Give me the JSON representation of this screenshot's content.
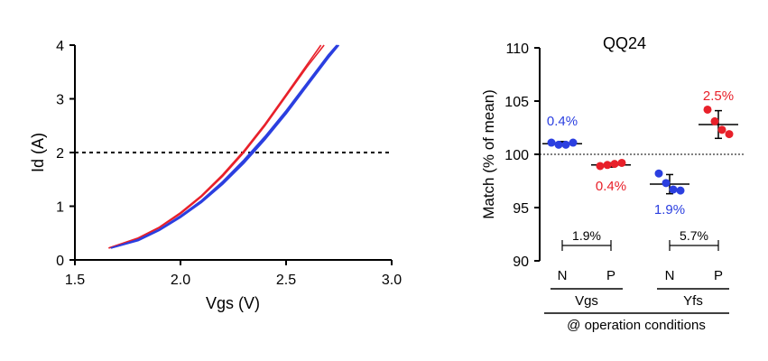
{
  "chart_data": [
    {
      "type": "line",
      "xlabel": "Vgs (V)",
      "ylabel": "Id (A)",
      "xlim": [
        1.5,
        3.0
      ],
      "ylim": [
        0,
        4
      ],
      "xticks": [
        "1.5",
        "2.0",
        "2.5",
        "3.0"
      ],
      "yticks": [
        "0",
        "1",
        "2",
        "3",
        "4"
      ],
      "reference_line": {
        "y": 2,
        "style": "dotted"
      },
      "series": [
        {
          "color": "#e8202a",
          "x": [
            1.66,
            1.8,
            1.9,
            2.0,
            2.1,
            2.2,
            2.3,
            2.4,
            2.5,
            2.6,
            2.68
          ],
          "y": [
            0.22,
            0.4,
            0.6,
            0.86,
            1.18,
            1.56,
            2.0,
            2.5,
            3.05,
            3.6,
            4.0
          ]
        },
        {
          "color": "#e8202a",
          "x": [
            1.66,
            1.8,
            1.9,
            2.0,
            2.1,
            2.2,
            2.3,
            2.4,
            2.5,
            2.6,
            2.665
          ],
          "y": [
            0.22,
            0.41,
            0.61,
            0.88,
            1.2,
            1.59,
            2.03,
            2.53,
            3.08,
            3.64,
            4.0
          ]
        },
        {
          "color": "#2b3fe0",
          "x": [
            1.67,
            1.8,
            1.9,
            2.0,
            2.1,
            2.2,
            2.3,
            2.4,
            2.5,
            2.6,
            2.7,
            2.74
          ],
          "y": [
            0.22,
            0.38,
            0.57,
            0.82,
            1.11,
            1.46,
            1.86,
            2.3,
            2.78,
            3.3,
            3.82,
            4.0
          ]
        },
        {
          "color": "#2b3fe0",
          "x": [
            1.67,
            1.8,
            1.9,
            2.0,
            2.1,
            2.2,
            2.3,
            2.4,
            2.5,
            2.6,
            2.7,
            2.745
          ],
          "y": [
            0.22,
            0.37,
            0.56,
            0.8,
            1.09,
            1.43,
            1.83,
            2.27,
            2.75,
            3.27,
            3.79,
            4.0
          ]
        },
        {
          "color": "#2b3fe0",
          "x": [
            1.67,
            1.8,
            1.9,
            2.0,
            2.1,
            2.2,
            2.3,
            2.4,
            2.5,
            2.6,
            2.7,
            2.75
          ],
          "y": [
            0.22,
            0.36,
            0.55,
            0.79,
            1.07,
            1.41,
            1.8,
            2.24,
            2.72,
            3.24,
            3.76,
            4.0
          ]
        }
      ]
    },
    {
      "type": "scatter",
      "title": "QQ24",
      "ylabel": "Match (% of mean)",
      "ylim": [
        90,
        110
      ],
      "yticks": [
        "90",
        "95",
        "100",
        "105",
        "110"
      ],
      "reference_line": {
        "y": 100,
        "style": "dotted"
      },
      "categories": [
        "N",
        "P",
        "N",
        "P"
      ],
      "group_labels": [
        "Vgs",
        "Yfs"
      ],
      "footer_label": "@ operation conditions",
      "groups": [
        {
          "category": "N",
          "group": "Vgs",
          "color": "#2b3fe0",
          "values": [
            101.1,
            100.9,
            100.9,
            101.1
          ],
          "mean": 101.0,
          "err": 0.2,
          "label": "0.4%"
        },
        {
          "category": "P",
          "group": "Vgs",
          "color": "#e8202a",
          "values": [
            98.9,
            99.0,
            99.1,
            99.2
          ],
          "mean": 99.0,
          "err": 0.2,
          "label": "0.4%"
        },
        {
          "category": "N",
          "group": "Yfs",
          "color": "#2b3fe0",
          "values": [
            98.2,
            97.3,
            96.7,
            96.6
          ],
          "mean": 97.2,
          "err": 0.9,
          "label": "1.9%"
        },
        {
          "category": "P",
          "group": "Yfs",
          "color": "#e8202a",
          "values": [
            104.2,
            103.1,
            102.3,
            101.9
          ],
          "mean": 102.8,
          "err": 1.3,
          "label": "2.5%"
        }
      ],
      "brackets": [
        {
          "group": "Vgs",
          "label": "1.9%"
        },
        {
          "group": "Yfs",
          "label": "5.7%"
        }
      ]
    }
  ]
}
